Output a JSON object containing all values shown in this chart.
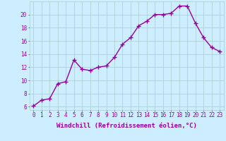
{
  "x": [
    0,
    1,
    2,
    3,
    4,
    5,
    6,
    7,
    8,
    9,
    10,
    11,
    12,
    13,
    14,
    15,
    16,
    17,
    18,
    19,
    20,
    21,
    22,
    23
  ],
  "y": [
    6.1,
    7.0,
    7.2,
    9.5,
    9.8,
    13.1,
    11.7,
    11.5,
    12.0,
    12.2,
    13.5,
    15.5,
    16.5,
    18.3,
    19.0,
    20.0,
    20.0,
    20.2,
    21.3,
    21.3,
    18.7,
    16.5,
    15.0,
    14.4
  ],
  "line_color": "#990099",
  "marker": "+",
  "marker_size": 4,
  "linewidth": 1.0,
  "background_color": "#cceeff",
  "grid_color": "#aacccc",
  "xlabel": "Windchill (Refroidissement éolien,°C)",
  "xlim": [
    -0.5,
    23.5
  ],
  "ylim": [
    5.5,
    22.0
  ],
  "yticks": [
    6,
    8,
    10,
    12,
    14,
    16,
    18,
    20
  ],
  "xticks": [
    0,
    1,
    2,
    3,
    4,
    5,
    6,
    7,
    8,
    9,
    10,
    11,
    12,
    13,
    14,
    15,
    16,
    17,
    18,
    19,
    20,
    21,
    22,
    23
  ],
  "tick_color": "#990099",
  "label_color": "#990099",
  "tick_fontsize": 5.5,
  "xlabel_fontsize": 6.5
}
